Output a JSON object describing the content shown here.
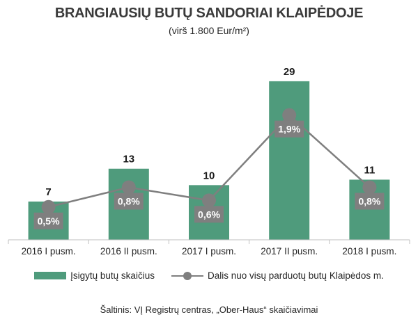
{
  "chart_data": {
    "type": "bar",
    "title": "BRANGIAUSIŲ BUTŲ SANDORIAI KLAIPĖDOJE",
    "subtitle": "(virš 1.800 Eur/m²)",
    "categories": [
      "2016 I pusm.",
      "2016 II pusm.",
      "2017 I pusm.",
      "2017 II pusm.",
      "2018 I pusm."
    ],
    "series": [
      {
        "name": "Įsigytų butų skaičius",
        "type": "bar",
        "values": [
          7,
          13,
          10,
          29,
          11
        ],
        "value_labels": [
          "7",
          "13",
          "10",
          "29",
          "11"
        ],
        "color": "#4f9b7c"
      },
      {
        "name": "Dalis nuo visų parduotų butų Klaipėdos m.",
        "type": "line",
        "values": [
          0.5,
          0.8,
          0.6,
          1.9,
          0.8
        ],
        "value_labels": [
          "0,5%",
          "0,8%",
          "0,6%",
          "1,9%",
          "0,8%"
        ],
        "unit": "%",
        "color": "#7f7f7f"
      }
    ],
    "ylim": [
      0,
      30
    ],
    "ylim_secondary": [
      0,
      2.5
    ],
    "grid": false,
    "legend_position": "bottom"
  },
  "source": "Šaltinis: VĮ Registrų centras, „Ober-Haus“ skaičiavimai"
}
